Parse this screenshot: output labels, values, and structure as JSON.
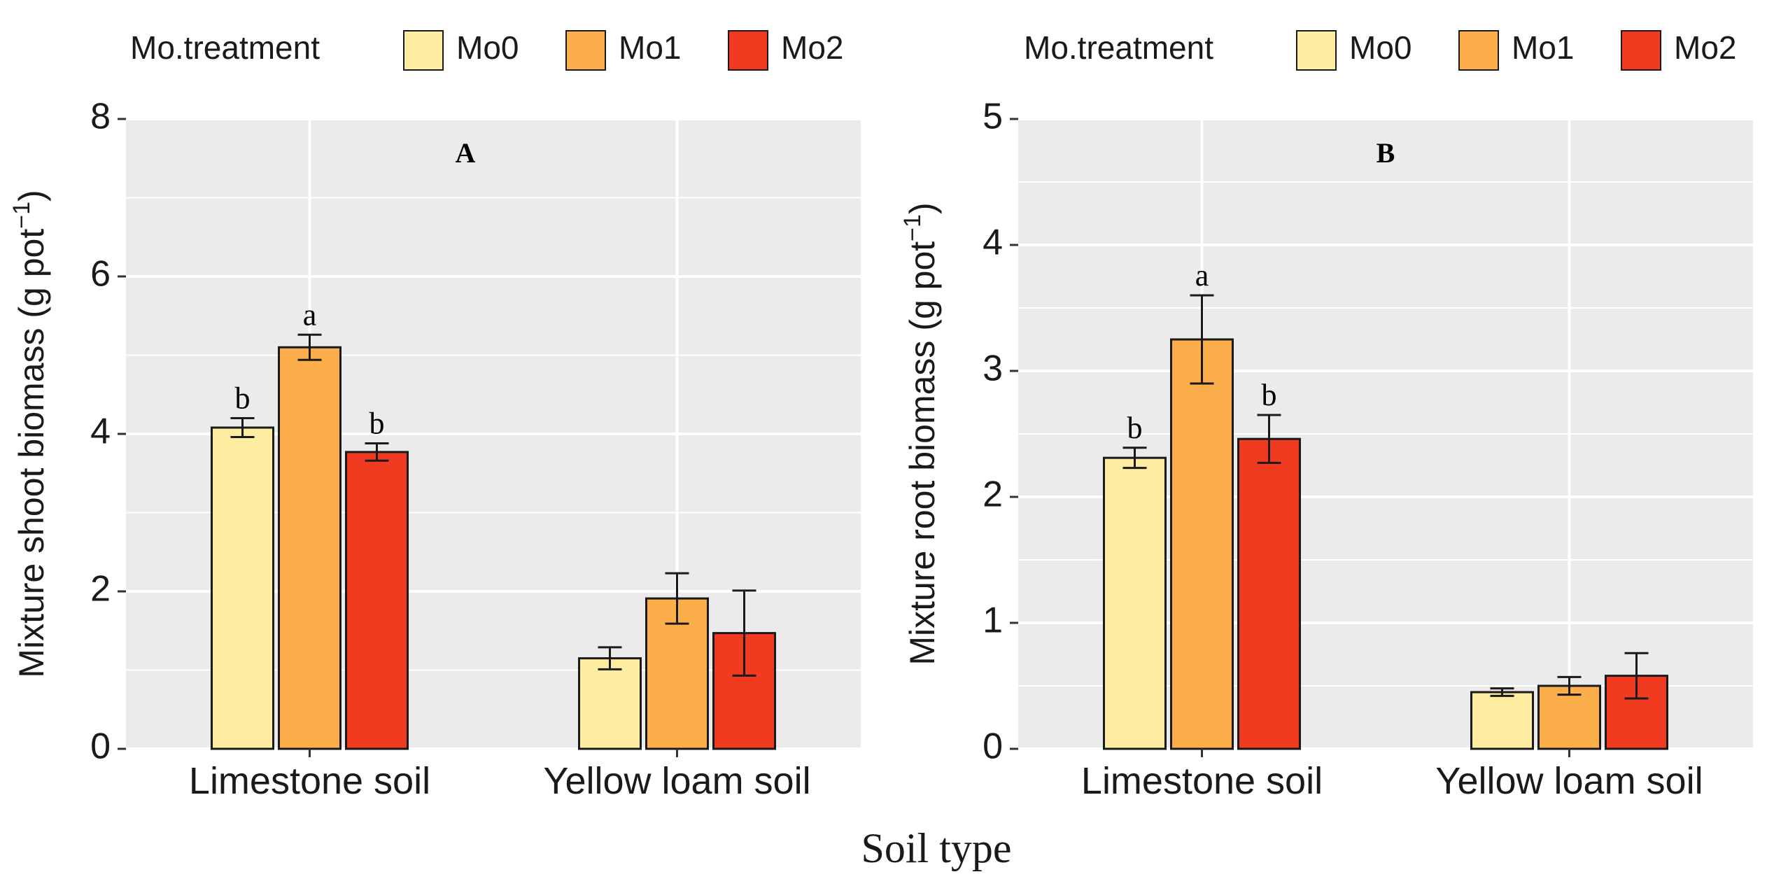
{
  "figure": {
    "xlabel_shared": "Soil type"
  },
  "chart_data": [
    {
      "type": "bar",
      "panel_label": "A",
      "title": "",
      "xlabel": "",
      "ylabel": "Mixture shoot biomass (g pot",
      "ylabel_sup": "−1",
      "ylabel_close": ")",
      "categories": [
        "Limestone soil",
        "Yellow loam soil"
      ],
      "ylim": [
        0,
        8
      ],
      "yticks": [
        0,
        2,
        4,
        6,
        8
      ],
      "grid": true,
      "legend": {
        "title": "Mo.treatment",
        "placement": "top",
        "entries": [
          "Mo0",
          "Mo1",
          "Mo2"
        ]
      },
      "series": [
        {
          "name": "Mo0",
          "color": "#FEEDA1",
          "values": [
            4.08,
            1.15
          ],
          "errors": [
            0.12,
            0.14
          ],
          "letters": [
            "b",
            ""
          ]
        },
        {
          "name": "Mo1",
          "color": "#FBAE4A",
          "values": [
            5.1,
            1.91
          ],
          "errors": [
            0.16,
            0.32
          ],
          "letters": [
            "a",
            ""
          ]
        },
        {
          "name": "Mo2",
          "color": "#F03B20",
          "values": [
            3.77,
            1.47
          ],
          "errors": [
            0.11,
            0.54
          ],
          "letters": [
            "b",
            ""
          ]
        }
      ]
    },
    {
      "type": "bar",
      "panel_label": "B",
      "title": "",
      "xlabel": "",
      "ylabel": "Mixture root biomass (g pot",
      "ylabel_sup": "−1",
      "ylabel_close": ")",
      "categories": [
        "Limestone soil",
        "Yellow loam soil"
      ],
      "ylim": [
        0,
        5
      ],
      "yticks": [
        0,
        1,
        2,
        3,
        4,
        5
      ],
      "grid": true,
      "legend": {
        "title": "Mo.treatment",
        "placement": "top",
        "entries": [
          "Mo0",
          "Mo1",
          "Mo2"
        ]
      },
      "series": [
        {
          "name": "Mo0",
          "color": "#FEEDA1",
          "values": [
            2.31,
            0.45
          ],
          "errors": [
            0.08,
            0.03
          ],
          "letters": [
            "b",
            ""
          ]
        },
        {
          "name": "Mo1",
          "color": "#FBAE4A",
          "values": [
            3.25,
            0.5
          ],
          "errors": [
            0.35,
            0.07
          ],
          "letters": [
            "a",
            ""
          ]
        },
        {
          "name": "Mo2",
          "color": "#F03B20",
          "values": [
            2.46,
            0.58
          ],
          "errors": [
            0.19,
            0.18
          ],
          "letters": [
            "b",
            ""
          ]
        }
      ]
    }
  ]
}
